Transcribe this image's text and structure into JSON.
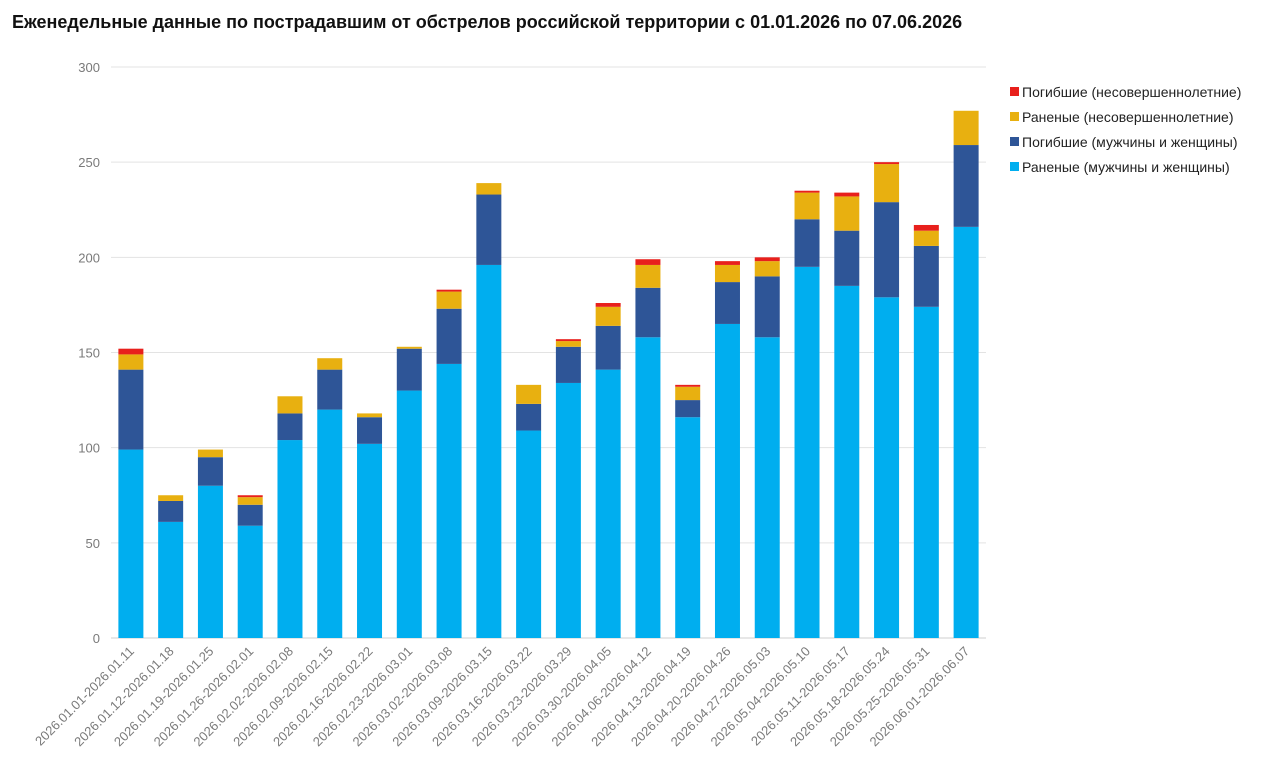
{
  "chart_data": {
    "type": "bar",
    "stacked": true,
    "title": "Еженедельные данные по пострадавшим от обстрелов российской территории с 01.01.2026 по 07.06.2026",
    "xlabel": "",
    "ylabel": "",
    "ylim": [
      0,
      300
    ],
    "yticks": [
      0,
      50,
      100,
      150,
      200,
      250,
      300
    ],
    "grid": true,
    "legend_position": "top-right",
    "categories": [
      "2026.01.01-2026.01.11",
      "2026.01.12-2026.01.18",
      "2026.01.19-2026.01.25",
      "2026.01.26-2026.02.01",
      "2026.02.02-2026.02.08",
      "2026.02.09-2026.02.15",
      "2026.02.16-2026.02.22",
      "2026.02.23-2026.03.01",
      "2026.03.02-2026.03.08",
      "2026.03.09-2026.03.15",
      "2026.03.16-2026.03.22",
      "2026.03.23-2026.03.29",
      "2026.03.30-2026.04.05",
      "2026.04.06-2026.04.12",
      "2026.04.13-2026.04.19",
      "2026.04.20-2026.04.26",
      "2026.04.27-2026.05.03",
      "2026.05.04-2026.05.10",
      "2026.05.11-2026.05.17",
      "2026.05.18-2026.05.24",
      "2026.05.25-2026.05.31",
      "2026.06.01-2026.06.07"
    ],
    "series": [
      {
        "name": "Раненые (мужчины и женщины)",
        "color": "#00aeef",
        "values": [
          99,
          61,
          80,
          59,
          104,
          120,
          102,
          130,
          144,
          196,
          109,
          134,
          141,
          158,
          116,
          165,
          158,
          195,
          185,
          179,
          174,
          216
        ]
      },
      {
        "name": "Погибшие (мужчины и женщины)",
        "color": "#2e5597",
        "values": [
          42,
          11,
          15,
          11,
          14,
          21,
          14,
          22,
          29,
          37,
          14,
          19,
          23,
          26,
          9,
          22,
          32,
          25,
          29,
          50,
          32,
          43
        ]
      },
      {
        "name": "Раненые (несовершеннолетние)",
        "color": "#e8b010",
        "values": [
          8,
          3,
          4,
          4,
          9,
          6,
          2,
          1,
          9,
          6,
          10,
          3,
          10,
          12,
          7,
          9,
          8,
          14,
          18,
          20,
          8,
          18
        ]
      },
      {
        "name": "Погибшие (несовершеннолетние)",
        "color": "#e8201c",
        "values": [
          3,
          0,
          0,
          1,
          0,
          0,
          0,
          0,
          1,
          0,
          0,
          1,
          2,
          3,
          1,
          2,
          2,
          1,
          2,
          1,
          3,
          0
        ]
      }
    ]
  }
}
